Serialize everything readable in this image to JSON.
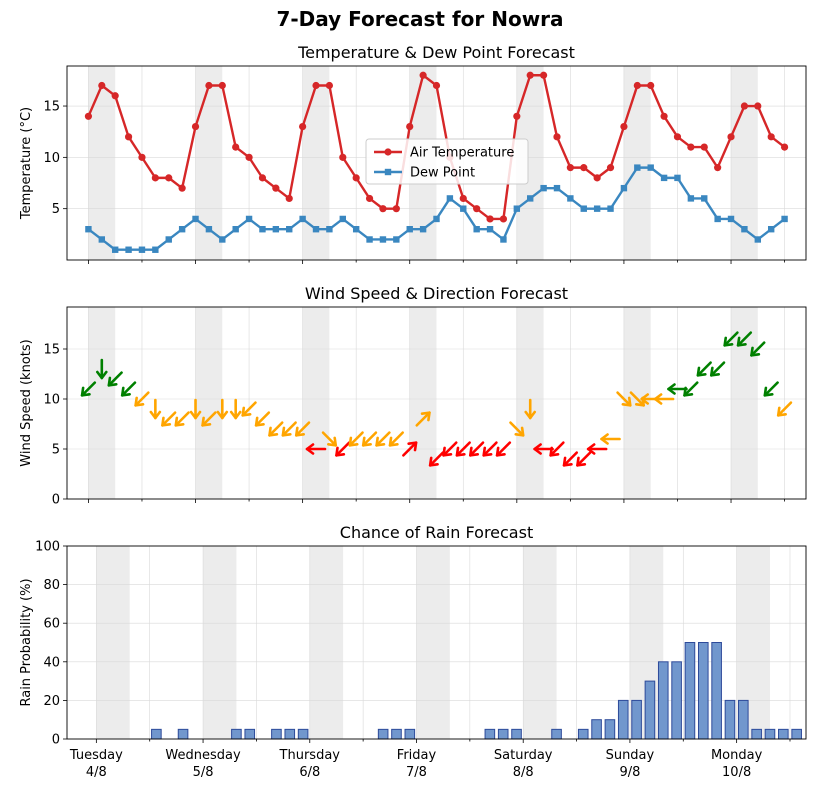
{
  "title": "7-Day Forecast for Nowra",
  "chart_data": [
    {
      "type": "line",
      "title": "Temperature & Dew Point Forecast",
      "ylabel": "Temperature (°C)",
      "ylim": [
        0,
        18.9
      ],
      "yticks": [
        5,
        10,
        15
      ],
      "x": [
        0,
        1,
        2,
        3,
        4,
        5,
        6,
        7,
        8,
        9,
        10,
        11,
        12,
        13,
        14,
        15,
        16,
        17,
        18,
        19,
        20,
        21,
        22,
        23,
        24,
        25,
        26,
        27,
        28,
        29,
        30,
        31,
        32,
        33,
        34,
        35,
        36,
        37,
        38,
        39,
        40,
        41,
        42,
        43,
        44,
        45,
        46,
        47,
        48,
        49,
        50,
        51,
        52
      ],
      "legend_position": "center",
      "series": [
        {
          "name": "Air Temperature",
          "color": "#d62728",
          "marker": "circle",
          "values": [
            14,
            17,
            16,
            12,
            10,
            8,
            8,
            7,
            13,
            17,
            17,
            11,
            10,
            8,
            7,
            6,
            13,
            17,
            17,
            10,
            8,
            6,
            5,
            5,
            13,
            18,
            17,
            10,
            6,
            5,
            4,
            4,
            14,
            18,
            18,
            12,
            9,
            9,
            8,
            9,
            13,
            17,
            17,
            14,
            12,
            11,
            11,
            9,
            12,
            15,
            15,
            12,
            11
          ]
        },
        {
          "name": "Dew Point",
          "color": "#3a87c0",
          "marker": "square",
          "values": [
            3,
            2,
            1,
            1,
            1,
            1,
            2,
            3,
            4,
            3,
            2,
            3,
            4,
            3,
            3,
            3,
            4,
            3,
            3,
            4,
            3,
            2,
            2,
            2,
            3,
            3,
            4,
            6,
            5,
            3,
            3,
            2,
            5,
            6,
            7,
            7,
            6,
            5,
            5,
            5,
            7,
            9,
            9,
            8,
            8,
            6,
            6,
            4,
            4,
            3,
            2,
            3,
            4
          ]
        }
      ]
    },
    {
      "type": "scatter",
      "title": "Wind Speed & Direction Forecast",
      "ylabel": "Wind Speed (knots)",
      "ylim": [
        0,
        19.2
      ],
      "yticks": [
        0,
        5,
        10,
        15
      ],
      "marker": "wind-arrow",
      "color_thresholds": {
        "red": "< 6 knots",
        "orange": "6-10 knots",
        "green": "> 10 knots"
      },
      "colors": {
        "red": "#ff0000",
        "orange": "#ffa500",
        "green": "#008000"
      },
      "x": [
        0,
        1,
        2,
        3,
        4,
        5,
        6,
        7,
        8,
        9,
        10,
        11,
        12,
        13,
        14,
        15,
        16,
        17,
        18,
        19,
        20,
        21,
        22,
        23,
        24,
        25,
        26,
        27,
        28,
        29,
        30,
        31,
        32,
        33,
        34,
        35,
        36,
        37,
        38,
        39,
        40,
        41,
        42,
        43,
        44,
        45,
        46,
        47,
        48,
        49,
        50,
        51,
        52
      ],
      "speed": [
        11,
        13,
        12,
        11,
        10,
        9,
        8,
        8,
        9,
        8,
        9,
        9,
        9,
        8,
        7,
        7,
        7,
        5,
        6,
        5,
        6,
        6,
        6,
        6,
        5,
        8,
        4,
        5,
        5,
        5,
        5,
        5,
        7,
        9,
        5,
        5,
        4,
        4,
        5,
        6,
        10,
        10,
        10,
        10,
        11,
        11,
        13,
        13,
        16,
        16,
        15,
        11,
        9
      ],
      "direction_deg": [
        135,
        90,
        135,
        135,
        135,
        90,
        135,
        135,
        90,
        135,
        90,
        90,
        135,
        135,
        135,
        135,
        135,
        180,
        45,
        135,
        135,
        135,
        135,
        135,
        315,
        315,
        135,
        135,
        135,
        135,
        135,
        135,
        45,
        90,
        180,
        135,
        135,
        135,
        180,
        180,
        45,
        45,
        180,
        180,
        180,
        135,
        135,
        135,
        135,
        135,
        135,
        135,
        135
      ]
    },
    {
      "type": "bar",
      "title": "Chance of Rain Forecast",
      "ylabel": "Rain Probability (%)",
      "ylim": [
        0,
        100
      ],
      "yticks": [
        0,
        20,
        40,
        60,
        80,
        100
      ],
      "bar_color": "#7197cd",
      "bar_edge": "#2d4a9a",
      "x": [
        0,
        1,
        2,
        3,
        4,
        5,
        6,
        7,
        8,
        9,
        10,
        11,
        12,
        13,
        14,
        15,
        16,
        17,
        18,
        19,
        20,
        21,
        22,
        23,
        24,
        25,
        26,
        27,
        28,
        29,
        30,
        31,
        32,
        33,
        34,
        35,
        36,
        37,
        38,
        39,
        40,
        41,
        42,
        43,
        44,
        45,
        46,
        47,
        48,
        49,
        50,
        51,
        52
      ],
      "values": [
        0,
        0,
        0,
        0,
        5,
        0,
        5,
        0,
        0,
        0,
        5,
        5,
        0,
        5,
        5,
        5,
        0,
        0,
        0,
        0,
        0,
        5,
        5,
        5,
        0,
        0,
        0,
        0,
        0,
        5,
        5,
        5,
        0,
        0,
        5,
        0,
        5,
        10,
        10,
        20,
        20,
        30,
        40,
        40,
        50,
        50,
        50,
        20,
        20,
        5,
        5,
        5,
        5
      ]
    }
  ],
  "x_axis": {
    "ticks": [
      {
        "day": "Tuesday",
        "date": "4/8"
      },
      {
        "day": "Wednesday",
        "date": "5/8"
      },
      {
        "day": "Thursday",
        "date": "6/8"
      },
      {
        "day": "Friday",
        "date": "7/8"
      },
      {
        "day": "Saturday",
        "date": "8/8"
      },
      {
        "day": "Sunday",
        "date": "9/8"
      },
      {
        "day": "Monday",
        "date": "10/8"
      }
    ]
  }
}
